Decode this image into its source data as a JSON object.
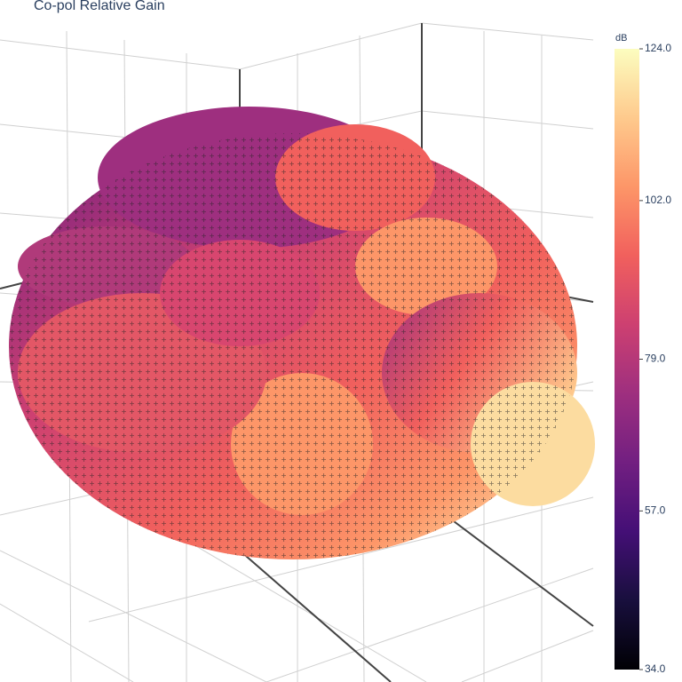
{
  "chart_data": {
    "type": "surface",
    "title": "Co-pol Relative Gain",
    "colorbar": {
      "title": "dB",
      "range": [
        34,
        124
      ],
      "ticks": [
        {
          "value": 34,
          "label": "34.0"
        },
        {
          "value": 57,
          "label": "57.0"
        },
        {
          "value": 79,
          "label": "79.0"
        },
        {
          "value": 102,
          "label": "102.0"
        },
        {
          "value": 124,
          "label": "124.0"
        }
      ],
      "colorscale": [
        "#000004",
        "#180f3d",
        "#440f76",
        "#721f81",
        "#9e2f7f",
        "#cd4071",
        "#f1605d",
        "#fd9668",
        "#feca8d",
        "#fcfdbf"
      ]
    }
  }
}
